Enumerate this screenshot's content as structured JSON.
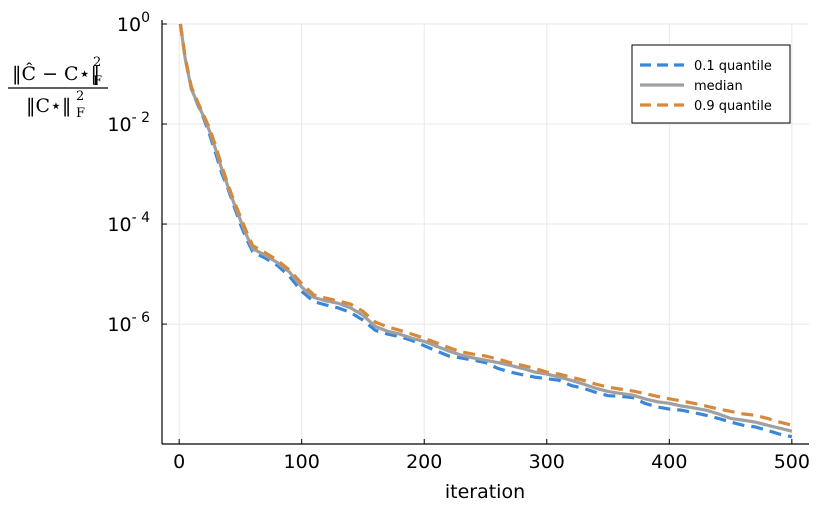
{
  "chart_data": {
    "type": "line",
    "xlabel": "iteration",
    "ylabel": {
      "numerator": "‖Ĉ − C⋆‖",
      "numerator_sup": "2",
      "numerator_sub": "F",
      "denominator": "‖C⋆‖",
      "denominator_sup": "2",
      "denominator_sub": "F"
    },
    "xlim": [
      -14,
      514
    ],
    "ylim": [
      4e-09,
      1.0
    ],
    "yscale": "log",
    "grid": true,
    "legend_position": "top-right",
    "x_ticks": [
      0,
      100,
      200,
      300,
      400,
      500
    ],
    "y_ticks": [
      {
        "base": "10",
        "exp": "0",
        "value": 1.0
      },
      {
        "base": "10",
        "exp": "- 2",
        "value": 0.01
      },
      {
        "base": "10",
        "exp": "- 4",
        "value": 0.0001
      },
      {
        "base": "10",
        "exp": "- 6",
        "value": 1e-06
      }
    ],
    "series": [
      {
        "name": "0.1 quantile",
        "color": "#3a86d9",
        "style": "dashed",
        "x": [
          1,
          5,
          10,
          15,
          20,
          25,
          30,
          35,
          40,
          45,
          50,
          55,
          60,
          70,
          80,
          90,
          100,
          110,
          120,
          130,
          140,
          150,
          160,
          170,
          180,
          190,
          200,
          210,
          220,
          230,
          240,
          250,
          260,
          270,
          280,
          290,
          300,
          310,
          320,
          330,
          340,
          350,
          360,
          370,
          380,
          390,
          400,
          410,
          420,
          430,
          440,
          450,
          460,
          470,
          480,
          490,
          500
        ],
        "y": [
          1.0,
          0.2,
          0.05,
          0.025,
          0.013,
          0.006,
          0.0025,
          0.001,
          0.0005,
          0.00022,
          0.0001,
          5e-05,
          2.8e-05,
          2.1e-05,
          1.5e-05,
          9e-06,
          4.5e-06,
          2.8e-06,
          2.4e-06,
          2.1e-06,
          1.7e-06,
          1.2e-06,
          7.5e-07,
          6.3e-07,
          5.6e-07,
          4.7e-07,
          3.7e-07,
          2.9e-07,
          2.3e-07,
          2.1e-07,
          1.9e-07,
          1.7e-07,
          1.3e-07,
          1.1e-07,
          9.7e-08,
          8.7e-08,
          8.1e-08,
          7.5e-08,
          5.9e-08,
          5.2e-08,
          4.3e-08,
          3.7e-08,
          3.6e-08,
          3.4e-08,
          2.6e-08,
          2.2e-08,
          2e-08,
          1.9e-08,
          1.7e-08,
          1.5e-08,
          1.3e-08,
          1.1e-08,
          9.5e-09,
          8.8e-09,
          7.5e-09,
          6.3e-09,
          5.6e-09
        ]
      },
      {
        "name": "median",
        "color": "#a0a0a0",
        "style": "solid",
        "x": [
          1,
          5,
          10,
          15,
          20,
          25,
          30,
          35,
          40,
          45,
          50,
          55,
          60,
          70,
          80,
          90,
          100,
          110,
          120,
          130,
          140,
          150,
          160,
          170,
          180,
          190,
          200,
          210,
          220,
          230,
          240,
          250,
          260,
          270,
          280,
          290,
          300,
          310,
          320,
          330,
          340,
          350,
          360,
          370,
          380,
          390,
          400,
          410,
          420,
          430,
          440,
          450,
          460,
          470,
          480,
          490,
          500
        ],
        "y": [
          1.0,
          0.2,
          0.05,
          0.026,
          0.014,
          0.007,
          0.003,
          0.0012,
          0.00055,
          0.00025,
          0.00012,
          6e-05,
          3.2e-05,
          2.4e-05,
          1.7e-05,
          1.1e-05,
          5.5e-06,
          3.4e-06,
          2.9e-06,
          2.6e-06,
          2.1e-06,
          1.5e-06,
          9e-07,
          7.2e-07,
          6.3e-07,
          5.2e-07,
          4.5e-07,
          3.6e-07,
          2.9e-07,
          2.4e-07,
          2.1e-07,
          1.9e-07,
          1.7e-07,
          1.5e-07,
          1.3e-07,
          1.1e-07,
          1e-07,
          8.7e-08,
          7.5e-08,
          6.3e-08,
          5.2e-08,
          4.5e-08,
          4.1e-08,
          3.8e-08,
          3.2e-08,
          2.8e-08,
          2.6e-08,
          2.3e-08,
          2.1e-08,
          1.9e-08,
          1.6e-08,
          1.3e-08,
          1.2e-08,
          1.1e-08,
          9.5e-09,
          8.3e-09,
          7.2e-09
        ]
      },
      {
        "name": "0.9 quantile",
        "color": "#d6893d",
        "style": "dashed",
        "x": [
          1,
          5,
          10,
          15,
          20,
          25,
          30,
          35,
          40,
          45,
          50,
          55,
          60,
          70,
          80,
          90,
          100,
          110,
          120,
          130,
          140,
          150,
          160,
          170,
          180,
          190,
          200,
          210,
          220,
          230,
          240,
          250,
          260,
          270,
          280,
          290,
          300,
          310,
          320,
          330,
          340,
          350,
          360,
          370,
          380,
          390,
          400,
          410,
          420,
          430,
          440,
          450,
          460,
          470,
          480,
          490,
          500
        ],
        "y": [
          1.0,
          0.21,
          0.055,
          0.028,
          0.015,
          0.008,
          0.0035,
          0.0014,
          0.0006,
          0.00028,
          0.00014,
          7e-05,
          3.7e-05,
          2.7e-05,
          1.9e-05,
          1.2e-05,
          6.5e-06,
          3.8e-06,
          3.3e-06,
          2.9e-06,
          2.5e-06,
          1.8e-06,
          1.1e-06,
          8.8e-07,
          7.5e-07,
          6.3e-07,
          5.2e-07,
          4.2e-07,
          3.4e-07,
          2.8e-07,
          2.5e-07,
          2.3e-07,
          2e-07,
          1.7e-07,
          1.5e-07,
          1.3e-07,
          1.1e-07,
          1e-07,
          8.7e-08,
          7.5e-08,
          6.3e-08,
          5.5e-08,
          5e-08,
          4.6e-08,
          4.1e-08,
          3.6e-08,
          3.2e-08,
          2.9e-08,
          2.6e-08,
          2.3e-08,
          2e-08,
          1.8e-08,
          1.6e-08,
          1.5e-08,
          1.3e-08,
          1.1e-08,
          9.5e-09
        ]
      }
    ]
  }
}
